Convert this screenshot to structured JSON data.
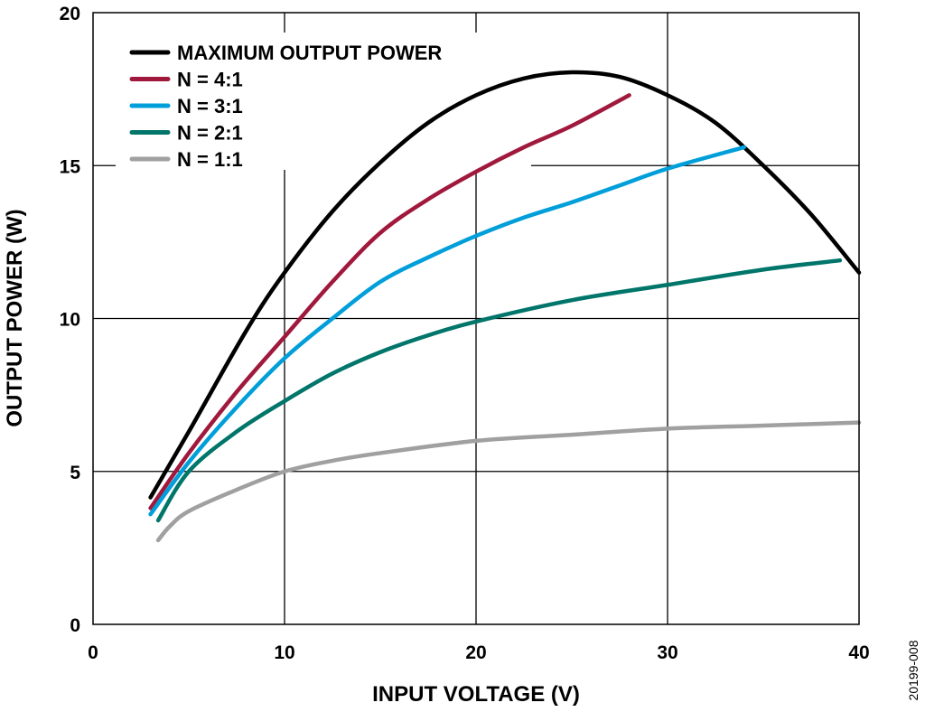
{
  "chart_data": {
    "type": "line",
    "title": "",
    "xlabel": "INPUT VOLTAGE (V)",
    "ylabel": "OUTPUT POWER (W)",
    "xlim": [
      0,
      40
    ],
    "ylim": [
      0,
      20
    ],
    "xticks": [
      0,
      10,
      20,
      30,
      40
    ],
    "yticks": [
      0,
      5,
      10,
      15,
      20
    ],
    "grid": true,
    "legend_position": "top-left",
    "figure_code": "20199-008",
    "series": [
      {
        "name": "MAXIMUM OUTPUT POWER",
        "color": "#000000",
        "x": [
          3,
          5,
          8,
          10,
          12.5,
          15,
          17.5,
          20,
          22.5,
          25,
          27.5,
          30,
          32.5,
          35,
          37.5,
          40
        ],
        "y": [
          4.15,
          6.3,
          9.6,
          11.5,
          13.5,
          15.1,
          16.4,
          17.3,
          17.85,
          18.05,
          17.9,
          17.3,
          16.4,
          15.0,
          13.4,
          11.5
        ]
      },
      {
        "name": "N = 4:1",
        "color": "#a0193c",
        "x": [
          3,
          5,
          7.5,
          10,
          12.5,
          15,
          17.5,
          20,
          22.5,
          25,
          28
        ],
        "y": [
          3.8,
          5.6,
          7.6,
          9.4,
          11.2,
          12.8,
          13.9,
          14.8,
          15.6,
          16.3,
          17.3
        ]
      },
      {
        "name": "N = 3:1",
        "color": "#009fda",
        "x": [
          3,
          5,
          7.5,
          10,
          12.5,
          15,
          17.5,
          20,
          22.5,
          25,
          27.5,
          30,
          34
        ],
        "y": [
          3.6,
          5.3,
          7.1,
          8.7,
          10.0,
          11.2,
          12.0,
          12.7,
          13.3,
          13.8,
          14.35,
          14.9,
          15.6
        ]
      },
      {
        "name": "N = 2:1",
        "color": "#00756a",
        "x": [
          3.4,
          5,
          7.5,
          10,
          12.5,
          15,
          17.5,
          20,
          25,
          30,
          35,
          39
        ],
        "y": [
          3.4,
          5.0,
          6.3,
          7.3,
          8.2,
          8.9,
          9.45,
          9.9,
          10.6,
          11.1,
          11.6,
          11.9
        ]
      },
      {
        "name": "N = 1:1",
        "color": "#a0a0a0",
        "x": [
          3.4,
          4,
          5,
          7.5,
          10,
          12.5,
          15,
          20,
          25,
          30,
          35,
          40
        ],
        "y": [
          2.75,
          3.2,
          3.7,
          4.4,
          5.0,
          5.35,
          5.6,
          6.0,
          6.2,
          6.4,
          6.5,
          6.6
        ]
      }
    ]
  }
}
